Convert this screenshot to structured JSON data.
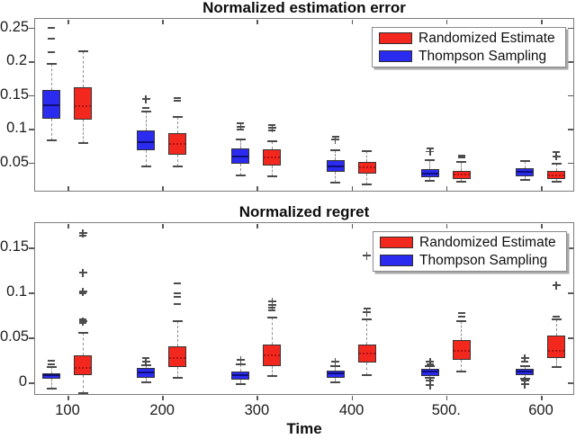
{
  "colors": {
    "randomized_estimate": "#f2281e",
    "thompson_sampling": "#2b2bef",
    "axis": "#7c7c7c",
    "median_blue": "#0e0e78",
    "median_red": "#b01212"
  },
  "chart_data": [
    {
      "type": "boxplot",
      "title": "Normalized estimation error",
      "xlabel": "",
      "categories": [
        100,
        200,
        300,
        400,
        500,
        600
      ],
      "x_tick_labels": [],
      "y_ticks": [
        0.05,
        0.1,
        0.15,
        0.2,
        0.25
      ],
      "y_tick_labels": [
        "0.05",
        "0.1",
        "0.15",
        "0.2",
        "0.25"
      ],
      "ylim": [
        0.007,
        0.264
      ],
      "grid": false,
      "legend": {
        "position": "northeast",
        "entries": [
          {
            "label": "Randomized Estimate",
            "color_key": "randomized_estimate"
          },
          {
            "label": "Thompson Sampling",
            "color_key": "thompson_sampling"
          }
        ]
      },
      "series": [
        {
          "name": "Thompson Sampling",
          "color_key": "thompson_sampling",
          "side": "left",
          "boxes": [
            {
              "time": 100,
              "whisker_low": 0.083,
              "q1": 0.115,
              "median": 0.135,
              "q3": 0.158,
              "whisker_high": 0.196,
              "outliers_above": [
                [
                  0.213,
                  "d"
                ],
                [
                  0.233,
                  "d"
                ],
                [
                  0.25,
                  "d"
                ]
              ],
              "outliers_below": []
            },
            {
              "time": 200,
              "whisker_low": 0.044,
              "q1": 0.068,
              "median": 0.08,
              "q3": 0.097,
              "whisker_high": 0.126,
              "outliers_above": [
                [
                  0.131,
                  "d"
                ],
                [
                  0.144,
                  "p"
                ]
              ],
              "outliers_below": []
            },
            {
              "time": 300,
              "whisker_low": 0.031,
              "q1": 0.048,
              "median": 0.059,
              "q3": 0.071,
              "whisker_high": 0.084,
              "outliers_above": [
                [
                  0.099,
                  "d"
                ],
                [
                  0.103,
                  "p"
                ],
                [
                  0.108,
                  "d"
                ]
              ],
              "outliers_below": []
            },
            {
              "time": 400,
              "whisker_low": 0.02,
              "q1": 0.036,
              "median": 0.044,
              "q3": 0.054,
              "whisker_high": 0.068,
              "outliers_above": [
                [
                  0.084,
                  "p"
                ],
                [
                  0.088,
                  "d"
                ]
              ],
              "outliers_below": []
            },
            {
              "time": 500,
              "whisker_low": 0.023,
              "q1": 0.028,
              "median": 0.034,
              "q3": 0.04,
              "whisker_high": 0.053,
              "outliers_above": [
                [
                  0.066,
                  "p"
                ],
                [
                  0.071,
                  "d"
                ]
              ],
              "outliers_below": []
            },
            {
              "time": 600,
              "whisker_low": 0.024,
              "q1": 0.03,
              "median": 0.036,
              "q3": 0.041,
              "whisker_high": 0.052,
              "outliers_above": [],
              "outliers_below": []
            }
          ]
        },
        {
          "name": "Randomized Estimate",
          "color_key": "randomized_estimate",
          "side": "right",
          "boxes": [
            {
              "time": 100,
              "whisker_low": 0.079,
              "q1": 0.113,
              "median": 0.134,
              "q3": 0.161,
              "whisker_high": 0.215,
              "outliers_above": [],
              "outliers_below": []
            },
            {
              "time": 200,
              "whisker_low": 0.044,
              "q1": 0.062,
              "median": 0.077,
              "q3": 0.093,
              "whisker_high": 0.117,
              "outliers_above": [
                [
                  0.141,
                  "d"
                ],
                [
                  0.146,
                  "d"
                ]
              ],
              "outliers_below": []
            },
            {
              "time": 300,
              "whisker_low": 0.029,
              "q1": 0.046,
              "median": 0.057,
              "q3": 0.069,
              "whisker_high": 0.082,
              "outliers_above": [
                [
                  0.097,
                  "d"
                ],
                [
                  0.101,
                  "p"
                ],
                [
                  0.106,
                  "d"
                ]
              ],
              "outliers_below": []
            },
            {
              "time": 400,
              "whisker_low": 0.018,
              "q1": 0.033,
              "median": 0.043,
              "q3": 0.051,
              "whisker_high": 0.067,
              "outliers_above": [],
              "outliers_below": []
            },
            {
              "time": 500,
              "whisker_low": 0.022,
              "q1": 0.026,
              "median": 0.032,
              "q3": 0.038,
              "whisker_high": 0.051,
              "outliers_above": [
                [
                  0.057,
                  "d"
                ],
                [
                  0.06,
                  "d"
                ]
              ],
              "outliers_below": []
            },
            {
              "time": 600,
              "whisker_low": 0.022,
              "q1": 0.026,
              "median": 0.031,
              "q3": 0.037,
              "whisker_high": 0.048,
              "outliers_above": [
                [
                  0.059,
                  "p"
                ],
                [
                  0.065,
                  "d"
                ]
              ],
              "outliers_below": []
            }
          ]
        }
      ]
    },
    {
      "type": "boxplot",
      "title": "Normalized regret",
      "xlabel": "Time",
      "categories": [
        100,
        200,
        300,
        400,
        500,
        600
      ],
      "x_tick_labels": [
        "100",
        "200",
        "300",
        "400",
        "500.",
        "600"
      ],
      "y_ticks": [
        0,
        0.05,
        0.1,
        0.15
      ],
      "y_tick_labels": [
        "0",
        "0.05",
        "0.1",
        "0.15"
      ],
      "ylim": [
        -0.014,
        0.178
      ],
      "grid": false,
      "legend": {
        "position": "northeast",
        "entries": [
          {
            "label": "Randomized Estimate",
            "color_key": "randomized_estimate"
          },
          {
            "label": "Thompson Sampling",
            "color_key": "thompson_sampling"
          }
        ]
      },
      "series": [
        {
          "name": "Thompson Sampling",
          "color_key": "thompson_sampling",
          "side": "left",
          "boxes": [
            {
              "time": 100,
              "whisker_low": -0.007,
              "q1": 0.004,
              "median": 0.008,
              "q3": 0.01,
              "whisker_high": 0.017,
              "outliers_above": [
                [
                  0.02,
                  "d"
                ],
                [
                  0.024,
                  "d"
                ]
              ],
              "outliers_below": []
            },
            {
              "time": 200,
              "whisker_low": 0.0,
              "q1": 0.005,
              "median": 0.011,
              "q3": 0.016,
              "whisker_high": 0.019,
              "outliers_above": [
                [
                  0.023,
                  "p"
                ],
                [
                  0.027,
                  "d"
                ]
              ],
              "outliers_below": []
            },
            {
              "time": 300,
              "whisker_low": -0.002,
              "q1": 0.003,
              "median": 0.008,
              "q3": 0.012,
              "whisker_high": 0.02,
              "outliers_above": [
                [
                  0.025,
                  "p"
                ]
              ],
              "outliers_below": []
            },
            {
              "time": 400,
              "whisker_low": 0.0,
              "q1": 0.005,
              "median": 0.01,
              "q3": 0.013,
              "whisker_high": 0.018,
              "outliers_above": [
                [
                  0.023,
                  "p"
                ]
              ],
              "outliers_below": []
            },
            {
              "time": 500,
              "whisker_low": 0.005,
              "q1": 0.007,
              "median": 0.012,
              "q3": 0.015,
              "whisker_high": 0.018,
              "outliers_above": [
                [
                  0.02,
                  "d"
                ],
                [
                  0.023,
                  "p"
                ]
              ],
              "outliers_below": [
                [
                  0.002,
                  "p"
                ],
                [
                  -0.003,
                  "p"
                ]
              ]
            },
            {
              "time": 600,
              "whisker_low": 0.004,
              "q1": 0.008,
              "median": 0.012,
              "q3": 0.015,
              "whisker_high": 0.018,
              "outliers_above": [
                [
                  0.023,
                  "d"
                ],
                [
                  0.027,
                  "p"
                ]
              ],
              "outliers_below": [
                [
                  0.002,
                  "p"
                ],
                [
                  -0.002,
                  "p"
                ]
              ]
            }
          ]
        },
        {
          "name": "Randomized Estimate",
          "color_key": "randomized_estimate",
          "side": "right",
          "boxes": [
            {
              "time": 100,
              "whisker_low": -0.012,
              "q1": 0.008,
              "median": 0.016,
              "q3": 0.03,
              "whisker_high": 0.055,
              "outliers_above": [
                [
                  0.066,
                  "d"
                ],
                [
                  0.068,
                  "p"
                ],
                [
                  0.07,
                  "d"
                ],
                [
                  0.099,
                  "d"
                ],
                [
                  0.101,
                  "p"
                ],
                [
                  0.122,
                  "p"
                ],
                [
                  0.163,
                  "d"
                ],
                [
                  0.166,
                  "p"
                ]
              ],
              "outliers_below": []
            },
            {
              "time": 200,
              "whisker_low": 0.005,
              "q1": 0.017,
              "median": 0.027,
              "q3": 0.04,
              "whisker_high": 0.068,
              "outliers_above": [
                [
                  0.087,
                  "d"
                ],
                [
                  0.095,
                  "d"
                ],
                [
                  0.099,
                  "d"
                ],
                [
                  0.11,
                  "d"
                ]
              ],
              "outliers_below": []
            },
            {
              "time": 300,
              "whisker_low": 0.007,
              "q1": 0.018,
              "median": 0.03,
              "q3": 0.042,
              "whisker_high": 0.072,
              "outliers_above": [
                [
                  0.08,
                  "d"
                ],
                [
                  0.083,
                  "d"
                ],
                [
                  0.086,
                  "p"
                ],
                [
                  0.09,
                  "p"
                ]
              ],
              "outliers_below": []
            },
            {
              "time": 400,
              "whisker_low": 0.008,
              "q1": 0.022,
              "median": 0.032,
              "q3": 0.042,
              "whisker_high": 0.07,
              "outliers_above": [
                [
                  0.078,
                  "p"
                ],
                [
                  0.082,
                  "d"
                ],
                [
                  0.141,
                  "p"
                ]
              ],
              "outliers_below": []
            },
            {
              "time": 500,
              "whisker_low": 0.012,
              "q1": 0.025,
              "median": 0.035,
              "q3": 0.047,
              "whisker_high": 0.068,
              "outliers_above": [
                [
                  0.073,
                  "d"
                ],
                [
                  0.077,
                  "d"
                ]
              ],
              "outliers_below": []
            },
            {
              "time": 600,
              "whisker_low": 0.017,
              "q1": 0.027,
              "median": 0.035,
              "q3": 0.052,
              "whisker_high": 0.07,
              "outliers_above": [
                [
                  0.073,
                  "d"
                ],
                [
                  0.108,
                  "p"
                ]
              ],
              "outliers_below": []
            }
          ]
        }
      ]
    }
  ]
}
